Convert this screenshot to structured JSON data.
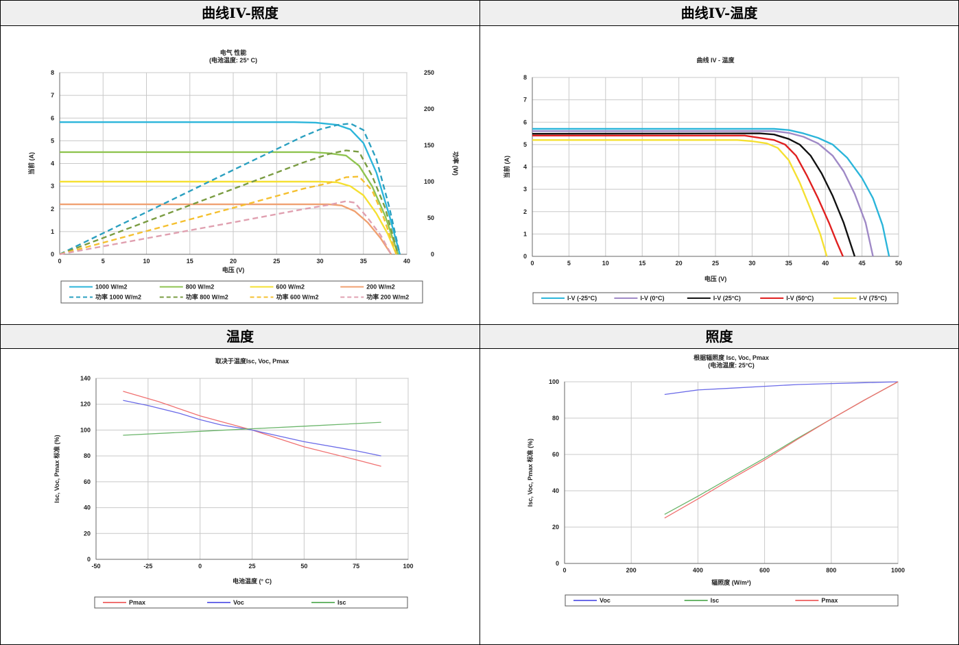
{
  "panels": [
    {
      "header": "曲线IV-照度"
    },
    {
      "header": "曲线IV-温度"
    },
    {
      "header": "温度"
    },
    {
      "header": "照度"
    }
  ],
  "chart_data": [
    {
      "id": "iv_irradiance",
      "type": "line",
      "title": "电气 性能",
      "subtitle": "(电池温度: 25° C)",
      "xlabel": "电压 (V)",
      "ylabel": "当前 (A)",
      "y2label": "功率 (W)",
      "xlim": [
        0,
        40
      ],
      "ylim": [
        0,
        8
      ],
      "y2lim": [
        0,
        250
      ],
      "xticks": [
        0,
        5,
        10,
        15,
        20,
        25,
        30,
        35,
        40
      ],
      "yticks": [
        0,
        1,
        2,
        3,
        4,
        5,
        6,
        7,
        8
      ],
      "y2ticks": [
        0,
        50,
        100,
        150,
        200,
        250
      ],
      "grid": true,
      "legend": "bottom",
      "series": [
        {
          "name": "1000 W/m2",
          "color": "#2bb5da",
          "dash": false,
          "axis": "y",
          "points": [
            [
              0,
              5.82
            ],
            [
              27,
              5.82
            ],
            [
              29.5,
              5.8
            ],
            [
              32,
              5.7
            ],
            [
              33.5,
              5.5
            ],
            [
              35,
              4.9
            ],
            [
              36.5,
              3.6
            ],
            [
              38,
              1.7
            ],
            [
              39.2,
              0
            ]
          ]
        },
        {
          "name": "800 W/m2",
          "color": "#8fc450",
          "dash": false,
          "axis": "y",
          "points": [
            [
              0,
              4.5
            ],
            [
              29,
              4.5
            ],
            [
              31,
              4.45
            ],
            [
              33,
              4.35
            ],
            [
              34.5,
              3.9
            ],
            [
              36,
              3.0
            ],
            [
              37.5,
              1.7
            ],
            [
              39,
              0
            ]
          ]
        },
        {
          "name": "600 W/m2",
          "color": "#f5e032",
          "dash": false,
          "axis": "y",
          "points": [
            [
              0,
              3.2
            ],
            [
              30,
              3.2
            ],
            [
              32,
              3.17
            ],
            [
              33.5,
              3.0
            ],
            [
              35,
              2.6
            ],
            [
              36.5,
              1.8
            ],
            [
              37.8,
              0.9
            ],
            [
              38.8,
              0
            ]
          ]
        },
        {
          "name": "200 W/m2",
          "color": "#f0a070",
          "dash": false,
          "axis": "y",
          "points": [
            [
              0,
              2.2
            ],
            [
              31,
              2.2
            ],
            [
              32.5,
              2.15
            ],
            [
              34,
              1.9
            ],
            [
              35.5,
              1.4
            ],
            [
              37,
              0.7
            ],
            [
              38.2,
              0
            ]
          ]
        },
        {
          "name": "功率 1000 W/m2",
          "color": "#2ba0c0",
          "dash": true,
          "axis": "y2",
          "points": [
            [
              0,
              0
            ],
            [
              10,
              58
            ],
            [
              20,
              116
            ],
            [
              28,
              162
            ],
            [
              30,
              172
            ],
            [
              32,
              178
            ],
            [
              33.5,
              180
            ],
            [
              35,
              171
            ],
            [
              36.5,
              131
            ],
            [
              38,
              64
            ],
            [
              39.2,
              0
            ]
          ]
        },
        {
          "name": "功率 800 W/m2",
          "color": "#7a9c42",
          "dash": true,
          "axis": "y2",
          "points": [
            [
              0,
              0
            ],
            [
              10,
              45
            ],
            [
              20,
              90
            ],
            [
              28,
              126
            ],
            [
              31,
              138
            ],
            [
              33,
              143
            ],
            [
              34.5,
              141
            ],
            [
              36,
              108
            ],
            [
              37.5,
              64
            ],
            [
              39,
              0
            ]
          ]
        },
        {
          "name": "功率 600 W/m2",
          "color": "#f5c030",
          "dash": true,
          "axis": "y2",
          "points": [
            [
              0,
              0
            ],
            [
              10,
              32
            ],
            [
              20,
              64
            ],
            [
              28,
              90
            ],
            [
              31,
              98
            ],
            [
              33,
              106
            ],
            [
              34.5,
              107
            ],
            [
              36,
              88
            ],
            [
              37.2,
              55
            ],
            [
              38.8,
              0
            ]
          ]
        },
        {
          "name": "功率 200 W/m2",
          "color": "#e0a0b0",
          "dash": true,
          "axis": "y2",
          "points": [
            [
              0,
              0
            ],
            [
              10,
              22
            ],
            [
              20,
              44
            ],
            [
              28,
              62
            ],
            [
              31,
              68
            ],
            [
              33,
              73
            ],
            [
              34,
              71
            ],
            [
              35.5,
              50
            ],
            [
              37,
              26
            ],
            [
              38.2,
              0
            ]
          ]
        }
      ]
    },
    {
      "id": "iv_temperature",
      "type": "line",
      "title": "曲线 IV - 温度",
      "xlabel": "电压 (V)",
      "ylabel": "当前 (A)",
      "xlim": [
        0,
        50
      ],
      "ylim": [
        0,
        8
      ],
      "xticks": [
        0,
        5,
        10,
        15,
        20,
        25,
        30,
        35,
        40,
        45,
        50
      ],
      "yticks": [
        0,
        1,
        2,
        3,
        4,
        5,
        6,
        7,
        8
      ],
      "grid": true,
      "legend": "bottom",
      "series": [
        {
          "name": "I-V (-25°C)",
          "color": "#2bb5da",
          "points": [
            [
              0,
              5.7
            ],
            [
              33,
              5.7
            ],
            [
              35,
              5.65
            ],
            [
              37,
              5.5
            ],
            [
              39,
              5.3
            ],
            [
              41,
              5.0
            ],
            [
              43,
              4.4
            ],
            [
              45,
              3.5
            ],
            [
              46.5,
              2.6
            ],
            [
              47.8,
              1.4
            ],
            [
              48.7,
              0
            ]
          ]
        },
        {
          "name": "I-V (0°C)",
          "color": "#9f89c6",
          "points": [
            [
              0,
              5.6
            ],
            [
              33,
              5.6
            ],
            [
              35,
              5.52
            ],
            [
              37,
              5.35
            ],
            [
              39,
              5.05
            ],
            [
              41,
              4.5
            ],
            [
              42.5,
              3.8
            ],
            [
              44,
              2.8
            ],
            [
              45.5,
              1.5
            ],
            [
              46.5,
              0
            ]
          ]
        },
        {
          "name": "I-V (25°C)",
          "color": "#111111",
          "points": [
            [
              0,
              5.48
            ],
            [
              31,
              5.5
            ],
            [
              33,
              5.45
            ],
            [
              35,
              5.25
            ],
            [
              36.5,
              5.0
            ],
            [
              38,
              4.5
            ],
            [
              39.5,
              3.7
            ],
            [
              41,
              2.7
            ],
            [
              42.5,
              1.5
            ],
            [
              44,
              0
            ]
          ]
        },
        {
          "name": "I-V (50°C)",
          "color": "#e02020",
          "points": [
            [
              0,
              5.4
            ],
            [
              29,
              5.4
            ],
            [
              31,
              5.3
            ],
            [
              33,
              5.2
            ],
            [
              34.5,
              5.0
            ],
            [
              36,
              4.5
            ],
            [
              37.5,
              3.6
            ],
            [
              39,
              2.6
            ],
            [
              40.5,
              1.5
            ],
            [
              41.6,
              0.6
            ],
            [
              42.4,
              0
            ]
          ]
        },
        {
          "name": "I-V (75°C)",
          "color": "#f5e032",
          "points": [
            [
              0,
              5.2
            ],
            [
              28,
              5.2
            ],
            [
              30,
              5.15
            ],
            [
              32,
              5.05
            ],
            [
              33.5,
              4.85
            ],
            [
              35,
              4.3
            ],
            [
              36.5,
              3.3
            ],
            [
              38,
              2.1
            ],
            [
              39.3,
              1.0
            ],
            [
              40.2,
              0
            ]
          ]
        }
      ]
    },
    {
      "id": "vs_temperature",
      "type": "line",
      "title": "取决于温度Isc, Voc, Pmax",
      "xlabel": "电池温度 (° C)",
      "ylabel": "Isc, Voc, Pmax 标准 (%)",
      "xlim": [
        -50,
        100
      ],
      "ylim": [
        0,
        140
      ],
      "xticks": [
        -50,
        -25,
        0,
        25,
        50,
        75,
        100
      ],
      "yticks": [
        0,
        20,
        40,
        60,
        80,
        100,
        120,
        140
      ],
      "grid": true,
      "legend": "bottom",
      "series": [
        {
          "name": "Pmax",
          "color": "#f07070",
          "points": [
            [
              -37,
              130
            ],
            [
              -20,
              122
            ],
            [
              0,
              111
            ],
            [
              25,
              100
            ],
            [
              50,
              87
            ],
            [
              75,
              77
            ],
            [
              87,
              72
            ]
          ]
        },
        {
          "name": "Voc",
          "color": "#6a6ae8",
          "points": [
            [
              -37,
              123
            ],
            [
              -25,
              119
            ],
            [
              -10,
              113
            ],
            [
              0,
              108
            ],
            [
              10,
              104
            ],
            [
              25,
              100
            ],
            [
              50,
              91
            ],
            [
              75,
              84
            ],
            [
              87,
              80
            ]
          ]
        },
        {
          "name": "Isc",
          "color": "#6ab56a",
          "points": [
            [
              -37,
              96
            ],
            [
              0,
              99
            ],
            [
              25,
              101
            ],
            [
              50,
              103
            ],
            [
              87,
              106
            ]
          ]
        }
      ]
    },
    {
      "id": "vs_irradiance",
      "type": "line",
      "title": "根据辐照度 Isc, Voc, Pmax",
      "subtitle": "(电池温度: 25°C)",
      "xlabel": "辐照度 (W/m²)",
      "ylabel": "Isc, Voc, Pmax 标准 (%)",
      "xlim": [
        0,
        1000
      ],
      "ylim": [
        0,
        100
      ],
      "xticks": [
        0,
        200,
        400,
        600,
        800,
        1000
      ],
      "yticks": [
        0,
        20,
        40,
        60,
        80,
        100
      ],
      "grid": true,
      "legend": "bottom",
      "series": [
        {
          "name": "Voc",
          "color": "#6a6ae8",
          "points": [
            [
              300,
              93
            ],
            [
              400,
              95.5
            ],
            [
              500,
              96.5
            ],
            [
              600,
              97.5
            ],
            [
              700,
              98.5
            ],
            [
              800,
              99
            ],
            [
              900,
              99.5
            ],
            [
              1000,
              100
            ]
          ]
        },
        {
          "name": "Isc",
          "color": "#6ab56a",
          "points": [
            [
              300,
              27
            ],
            [
              400,
              37
            ],
            [
              500,
              47.5
            ],
            [
              600,
              58
            ],
            [
              700,
              69
            ],
            [
              800,
              79.5
            ],
            [
              900,
              90
            ],
            [
              1000,
              100
            ]
          ]
        },
        {
          "name": "Pmax",
          "color": "#f07070",
          "points": [
            [
              300,
              25
            ],
            [
              400,
              35.5
            ],
            [
              500,
              46.5
            ],
            [
              600,
              57
            ],
            [
              700,
              68.5
            ],
            [
              800,
              79.5
            ],
            [
              900,
              90
            ],
            [
              1000,
              100
            ]
          ]
        }
      ]
    }
  ]
}
